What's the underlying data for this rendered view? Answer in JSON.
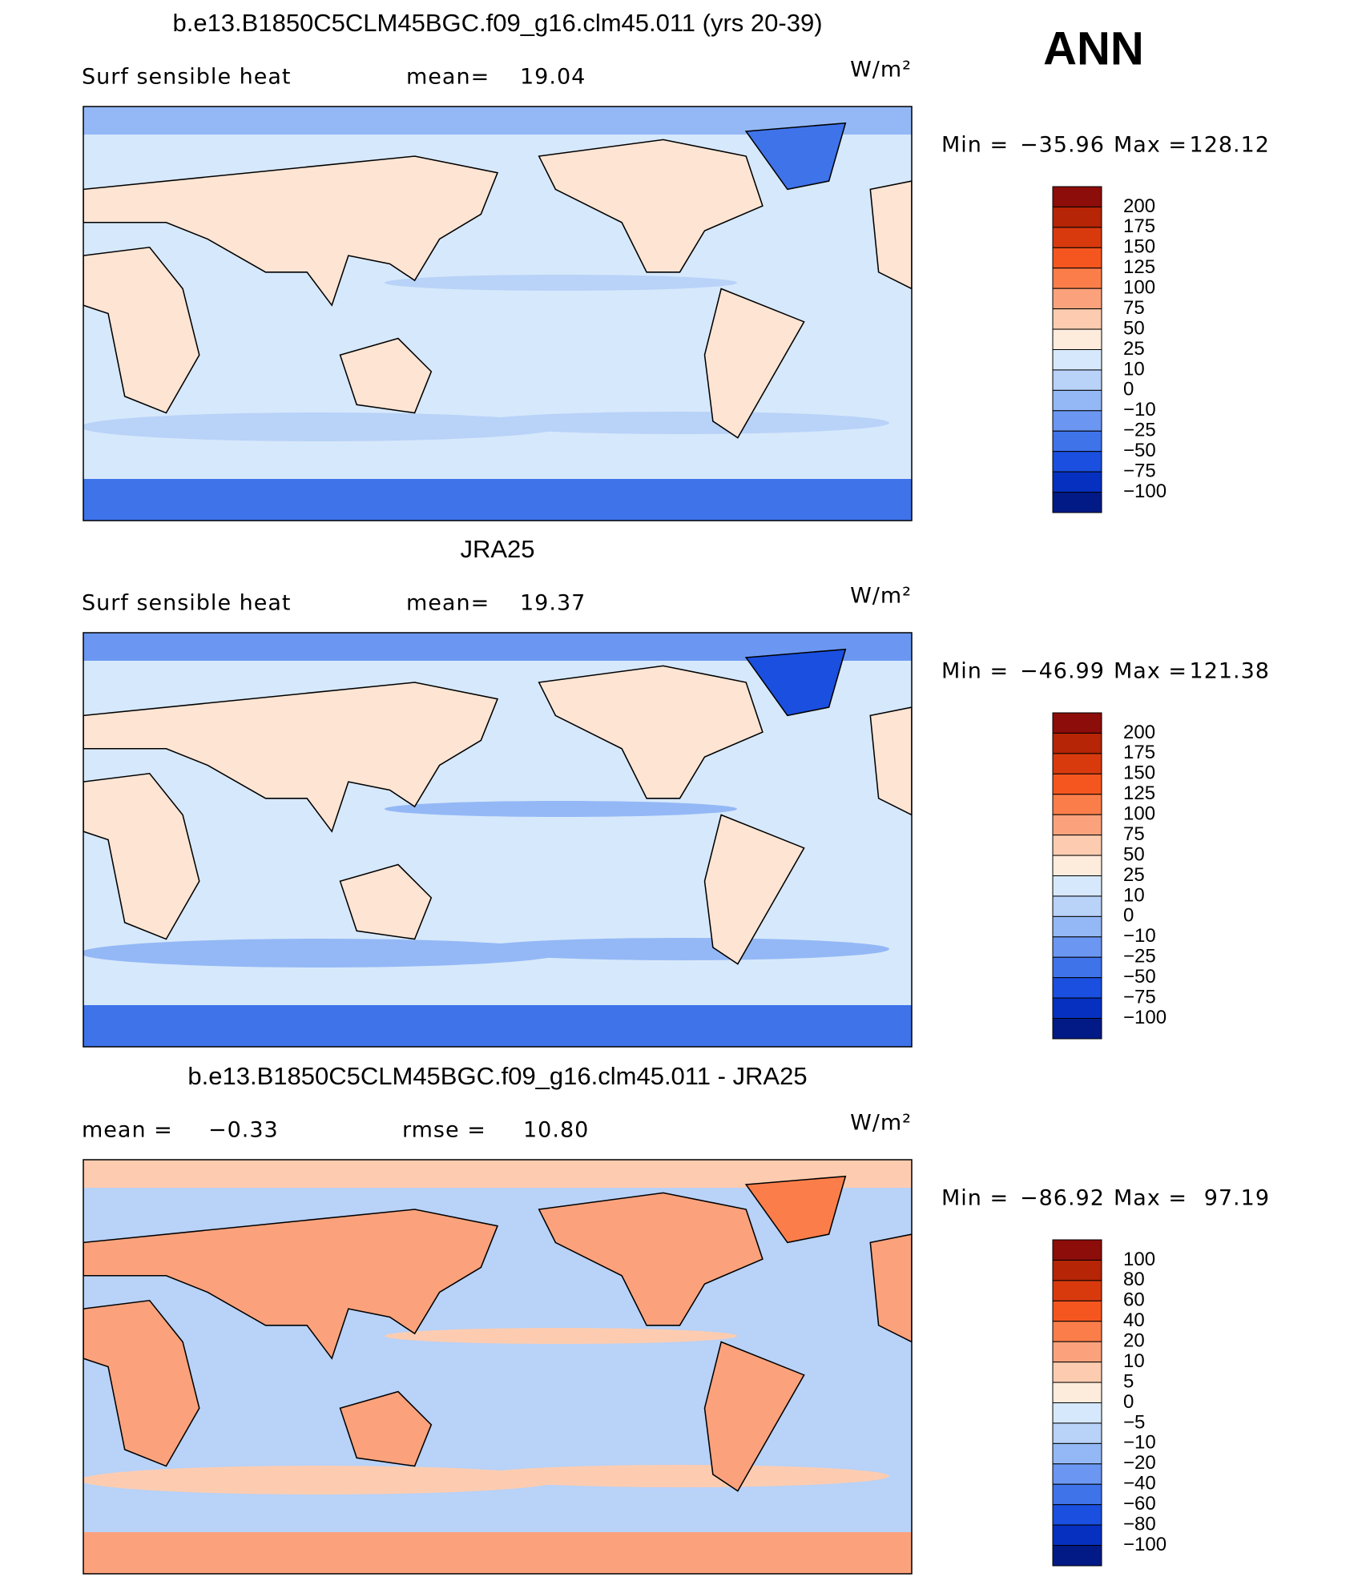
{
  "header": {
    "season": "ANN"
  },
  "panels": [
    {
      "title": "b.e13.B1850C5CLM45BGC.f09_g16.clm45.011 (yrs 20-39)",
      "field": "Surf  sensible  heat",
      "stats": [
        {
          "label": "mean=",
          "value": "19.04"
        }
      ],
      "units": "W/m²",
      "min_label": "Min  =",
      "min": "−35.96",
      "max_label": "Max  =",
      "max": "128.12",
      "colorbar": {
        "labels": [
          "200",
          "175",
          "150",
          "125",
          "100",
          "75",
          "50",
          "25",
          "10",
          "0",
          "−10",
          "−25",
          "−50",
          "−75",
          "−100"
        ],
        "colors": [
          "#8c0d0a",
          "#b52506",
          "#d83a0e",
          "#f5561f",
          "#fb7e4a",
          "#fba27c",
          "#fdccb0",
          "#fdebdc",
          "#d6e8fb",
          "#b8d2f8",
          "#94b8f6",
          "#6b97f2",
          "#3f73ea",
          "#1a4fe0",
          "#0530c0",
          "#021a86"
        ]
      }
    },
    {
      "title": "JRA25",
      "field": "Surf  sensible  heat",
      "stats": [
        {
          "label": "mean=",
          "value": "19.37"
        }
      ],
      "units": "W/m²",
      "min_label": "Min  =",
      "min": "−46.99",
      "max_label": "Max  =",
      "max": "121.38",
      "colorbar": {
        "labels": [
          "200",
          "175",
          "150",
          "125",
          "100",
          "75",
          "50",
          "25",
          "10",
          "0",
          "−10",
          "−25",
          "−50",
          "−75",
          "−100"
        ],
        "colors": [
          "#8c0d0a",
          "#b52506",
          "#d83a0e",
          "#f5561f",
          "#fb7e4a",
          "#fba27c",
          "#fdccb0",
          "#fdebdc",
          "#d6e8fb",
          "#b8d2f8",
          "#94b8f6",
          "#6b97f2",
          "#3f73ea",
          "#1a4fe0",
          "#0530c0",
          "#021a86"
        ]
      }
    },
    {
      "title": "b.e13.B1850C5CLM45BGC.f09_g16.clm45.011 - JRA25",
      "stats": [
        {
          "label": "mean  =",
          "value": "−0.33"
        },
        {
          "label": "rmse  =",
          "value": "10.80"
        }
      ],
      "units": "W/m²",
      "min_label": "Min  =",
      "min": "−86.92",
      "max_label": "Max  =",
      "max": "97.19",
      "colorbar": {
        "labels": [
          "100",
          "80",
          "60",
          "40",
          "20",
          "10",
          "5",
          "0",
          "−5",
          "−10",
          "−20",
          "−40",
          "−60",
          "−80",
          "−100"
        ],
        "colors": [
          "#8c0d0a",
          "#b52506",
          "#d83a0e",
          "#f5561f",
          "#fb7e4a",
          "#fba27c",
          "#fdccb0",
          "#fdebdc",
          "#d6e8fb",
          "#b8d2f8",
          "#94b8f6",
          "#6b97f2",
          "#3f73ea",
          "#1a4fe0",
          "#0530c0",
          "#021a86"
        ]
      }
    }
  ]
}
